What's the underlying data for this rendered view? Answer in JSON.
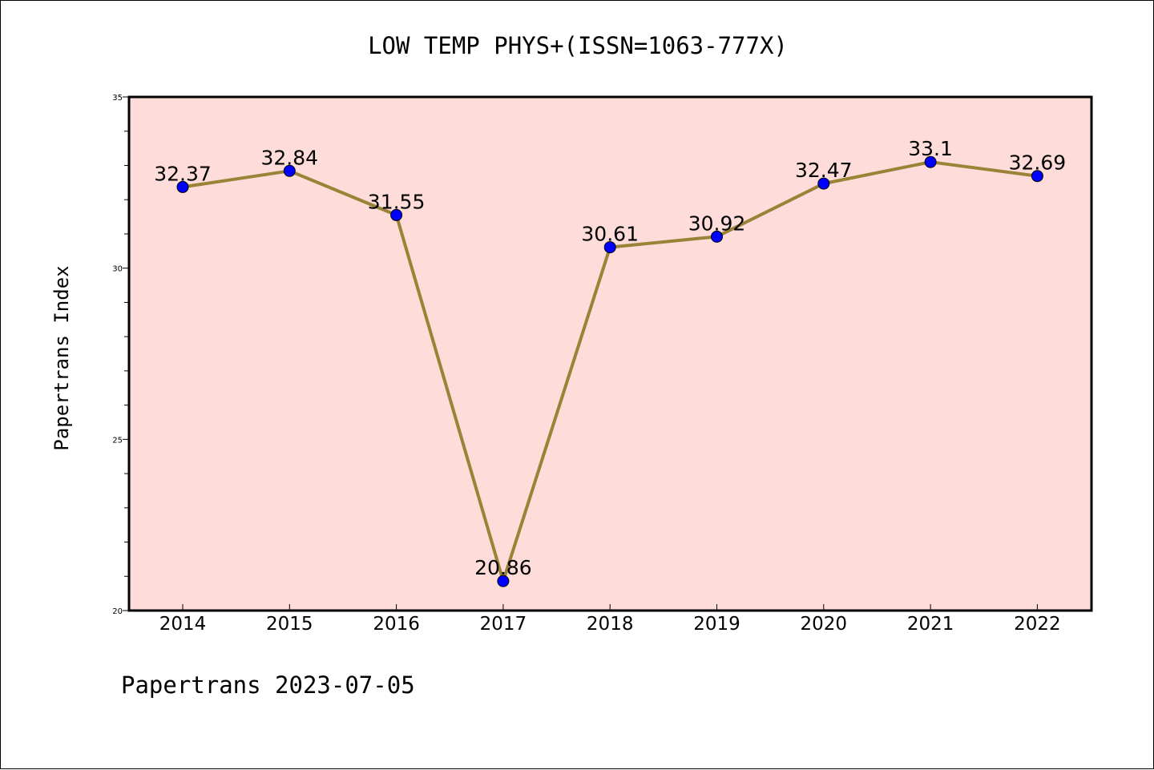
{
  "chart_data": {
    "type": "line",
    "title": "LOW TEMP PHYS+(ISSN=1063-777X)",
    "xlabel": "",
    "ylabel": "Papertrans Index",
    "categories": [
      "2014",
      "2015",
      "2016",
      "2017",
      "2018",
      "2019",
      "2020",
      "2021",
      "2022"
    ],
    "series": [
      {
        "values": [
          32.37,
          32.84,
          31.55,
          20.86,
          30.61,
          30.92,
          32.47,
          33.1,
          32.69
        ],
        "data_labels": [
          "32.37",
          "32.84",
          "31.55",
          "20.86",
          "30.61",
          "30.92",
          "32.47",
          "33.1",
          "32.69"
        ]
      }
    ],
    "ylim": [
      20,
      35
    ],
    "yticks": [
      "20",
      "25",
      "30",
      "35"
    ],
    "grid": false,
    "legend": "none",
    "colors": {
      "plot_background": "#FDDCDA",
      "line": "#9A8236",
      "marker": "#0000FF"
    },
    "footer": "Papertrans 2023-07-05"
  }
}
